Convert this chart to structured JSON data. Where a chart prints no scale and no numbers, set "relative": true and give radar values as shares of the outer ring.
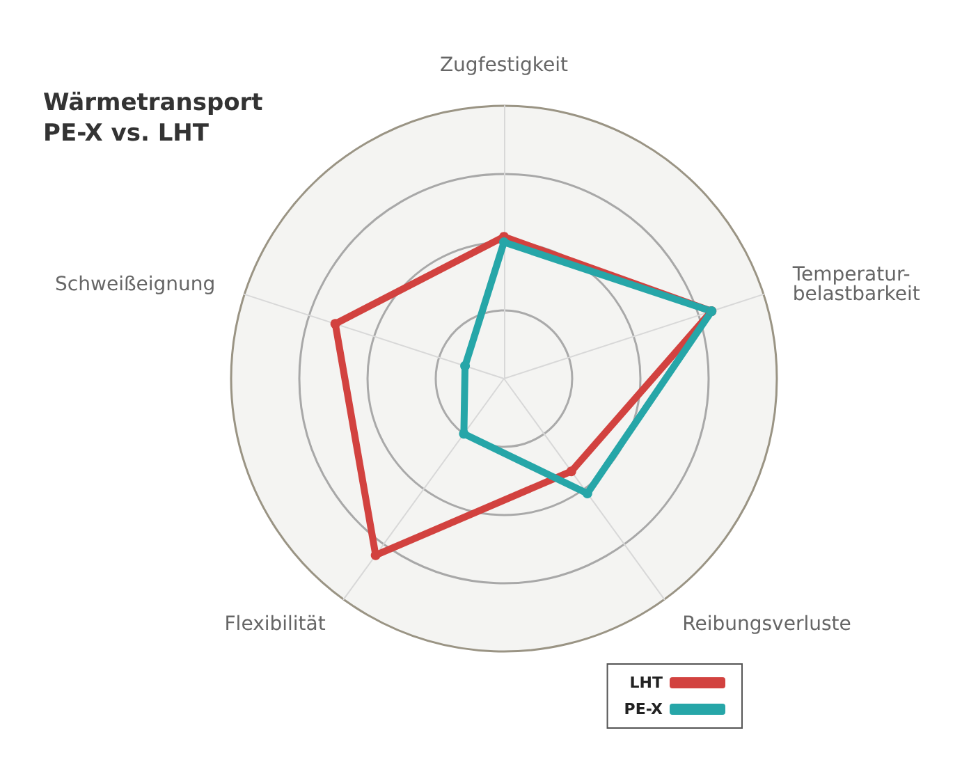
{
  "chart_data": {
    "type": "radar",
    "title": "Wärmetransport\nPE-X vs. LHT",
    "relative": true,
    "categories": [
      "Zugfestigkeit",
      "Temperatur-\nbelastbarkeit",
      "Reibungsverluste",
      "Flexibilität",
      "Schweißeignung"
    ],
    "series": [
      {
        "name": "LHT",
        "color": "#d2423f",
        "values": [
          0.52,
          0.8,
          0.42,
          0.8,
          0.65
        ]
      },
      {
        "name": "PE-X",
        "color": "#26a6a8",
        "values": [
          0.5,
          0.8,
          0.52,
          0.25,
          0.15
        ]
      }
    ],
    "legend": "bottom right",
    "marker": "circle",
    "grid": true
  }
}
